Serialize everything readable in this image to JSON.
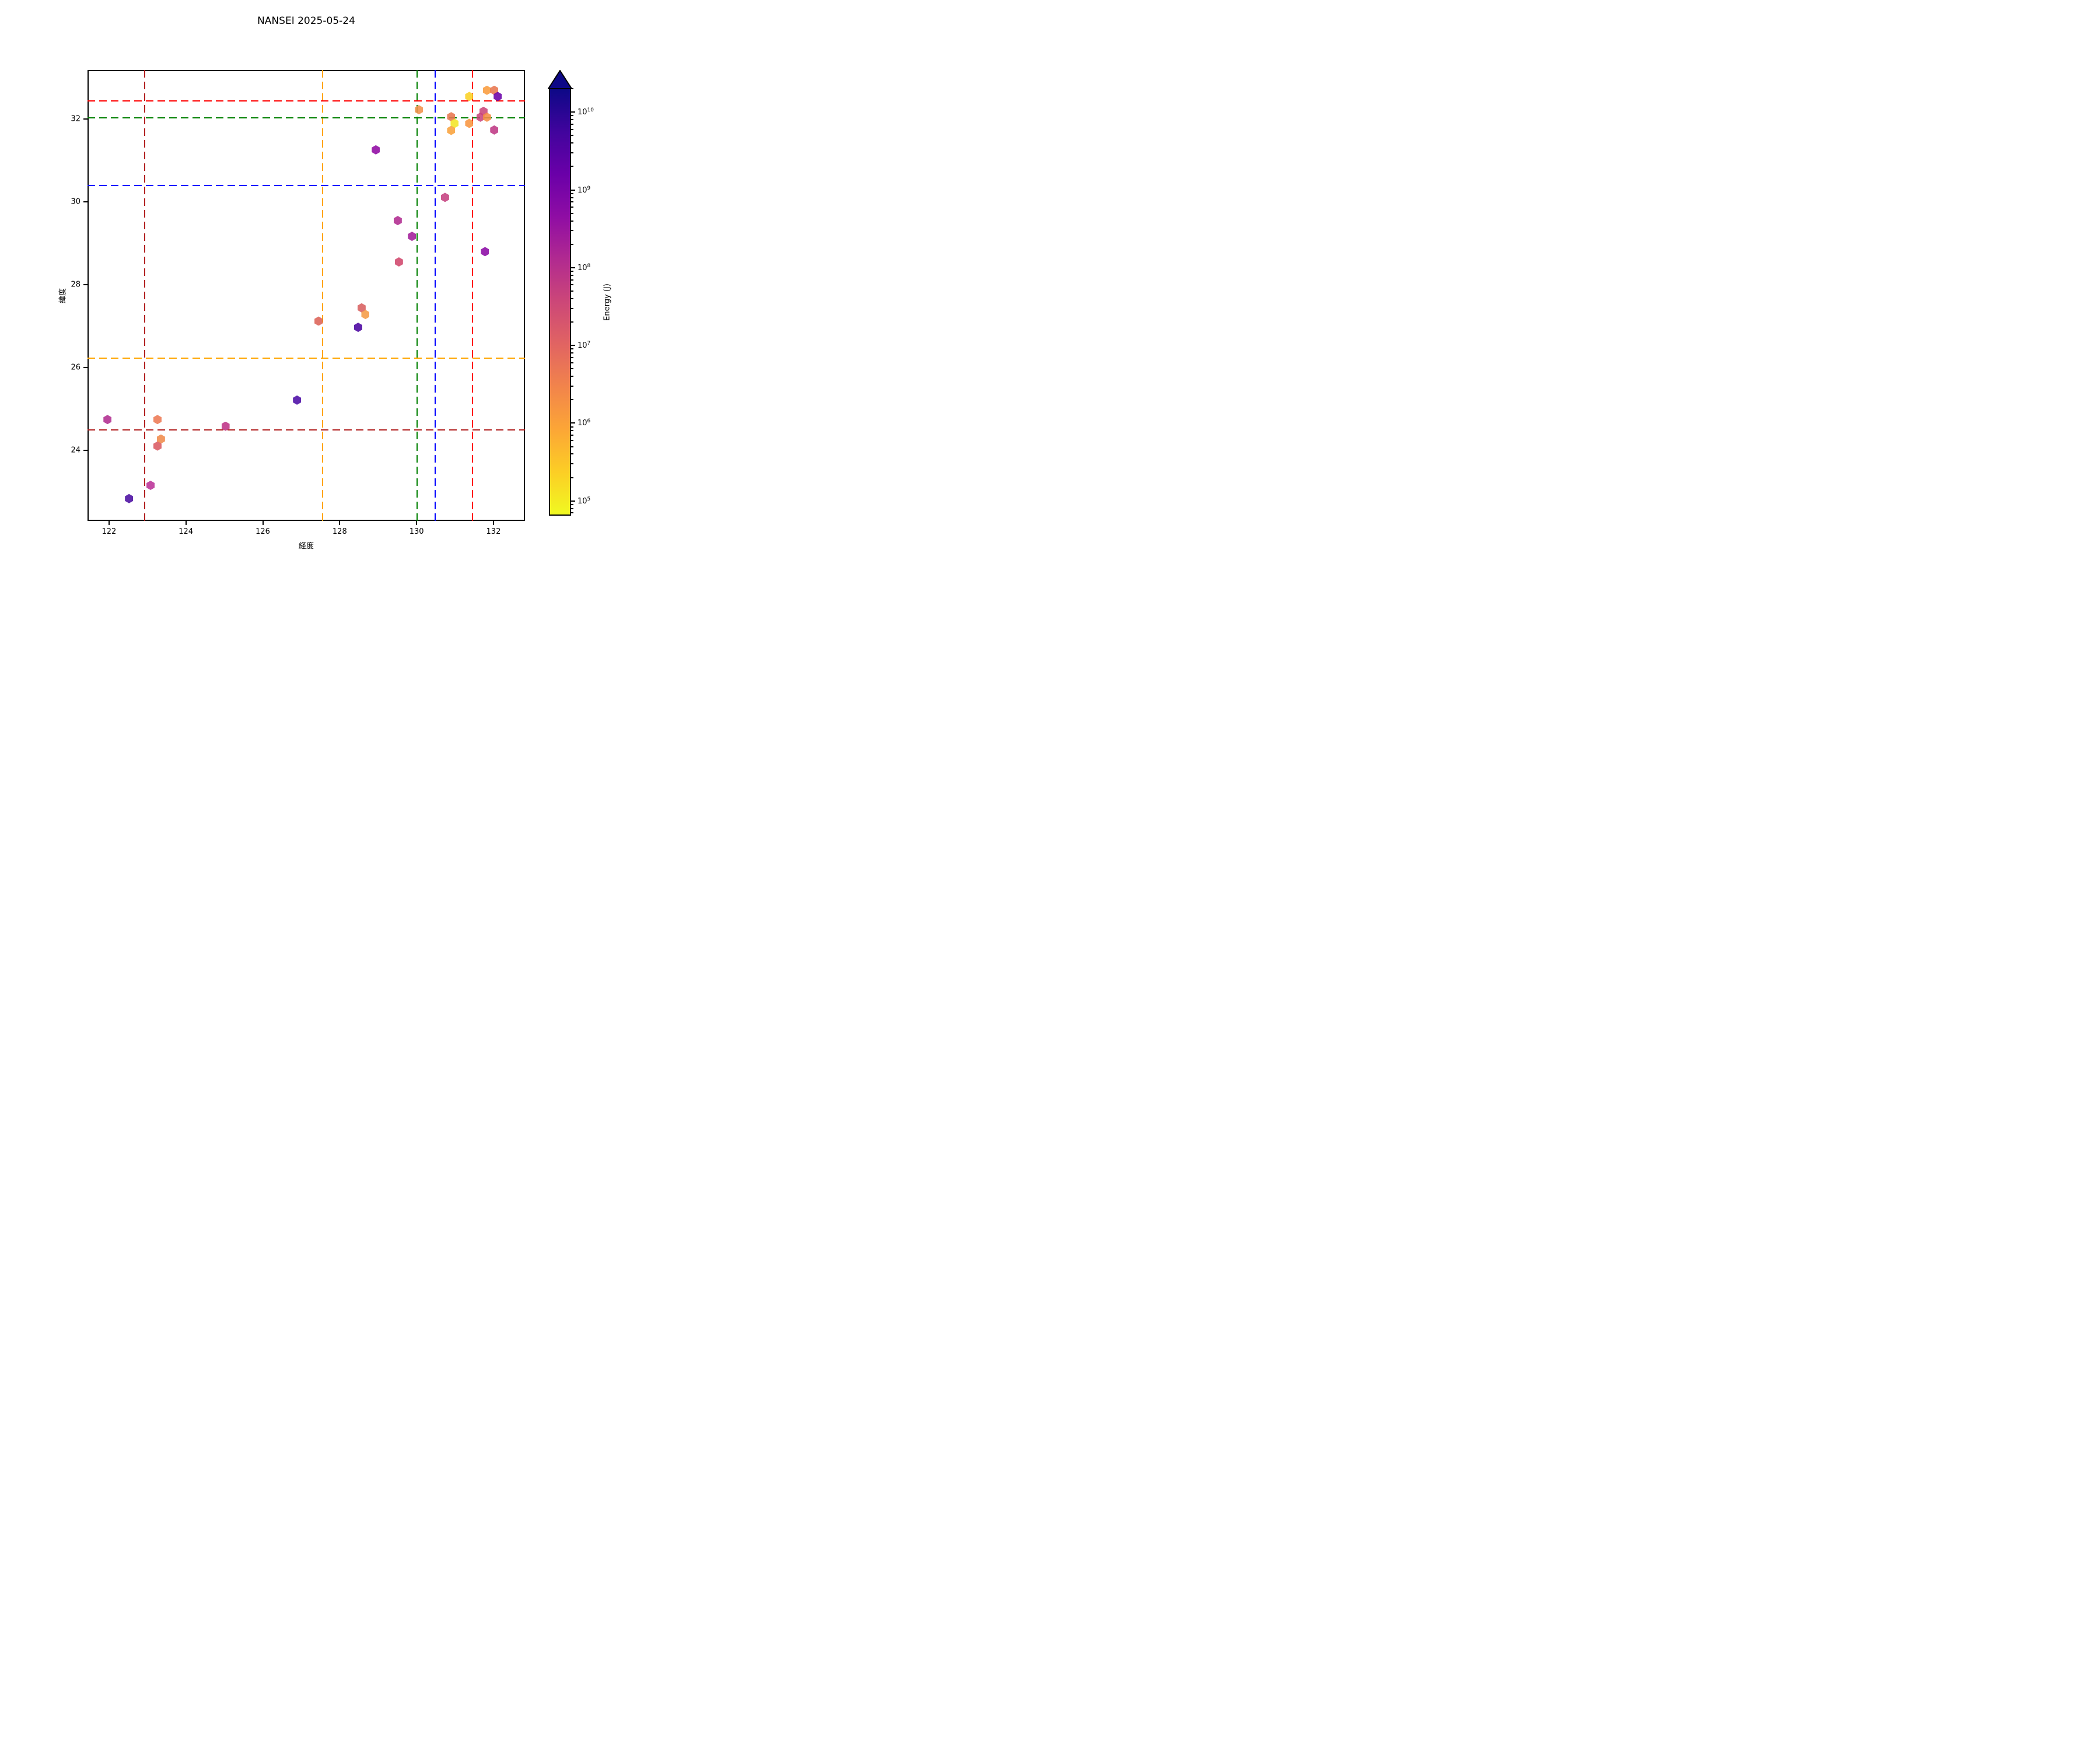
{
  "title": "NANSEI 2025-05-24",
  "chart_data": {
    "type": "scatter",
    "marker": "hexagon",
    "marker_alpha": 0.88,
    "title": "NANSEI 2025-05-24",
    "xlabel": "経度",
    "ylabel": "緯度",
    "xlim": [
      121.44,
      132.82
    ],
    "ylim": [
      22.29,
      33.19
    ],
    "xticks": [
      122,
      124,
      126,
      128,
      130,
      132
    ],
    "yticks": [
      24,
      26,
      28,
      30,
      32
    ],
    "grid": false,
    "legend": "none",
    "points": [
      {
        "lon": 131.83,
        "lat": 32.7,
        "color": "#f99c3e",
        "energy_J_est": 800000.0
      },
      {
        "lon": 132.02,
        "lat": 32.7,
        "color": "#e8764f",
        "energy_J_est": 10000000.0
      },
      {
        "lon": 132.11,
        "lat": 32.55,
        "color": "#6a00a8",
        "energy_J_est": 1600000000.0
      },
      {
        "lon": 131.37,
        "lat": 32.55,
        "color": "#fbd224",
        "energy_J_est": 200000.0
      },
      {
        "lon": 130.06,
        "lat": 32.23,
        "color": "#f2924c",
        "energy_J_est": 3000000.0
      },
      {
        "lon": 131.74,
        "lat": 32.19,
        "color": "#ca457a",
        "energy_J_est": 40000000.0
      },
      {
        "lon": 130.9,
        "lat": 32.06,
        "color": "#e8764f",
        "energy_J_est": 10000000.0
      },
      {
        "lon": 131.66,
        "lat": 32.05,
        "color": "#c8447c",
        "energy_J_est": 40000000.0
      },
      {
        "lon": 131.83,
        "lat": 32.05,
        "color": "#f58c46",
        "energy_J_est": 2000000.0
      },
      {
        "lon": 130.99,
        "lat": 31.9,
        "color": "#f3e524",
        "energy_J_est": 100000.0
      },
      {
        "lon": 131.37,
        "lat": 31.9,
        "color": "#f89540",
        "energy_J_est": 1000000.0
      },
      {
        "lon": 130.9,
        "lat": 31.73,
        "color": "#f9a23b",
        "energy_J_est": 700000.0
      },
      {
        "lon": 132.02,
        "lat": 31.74,
        "color": "#be3884",
        "energy_J_est": 100000000.0
      },
      {
        "lon": 128.94,
        "lat": 31.26,
        "color": "#8f09a3",
        "energy_J_est": 500000000.0
      },
      {
        "lon": 130.74,
        "lat": 30.11,
        "color": "#c5417f",
        "energy_J_est": 50000000.0
      },
      {
        "lon": 129.51,
        "lat": 29.55,
        "color": "#b12a90",
        "energy_J_est": 100000000.0
      },
      {
        "lon": 129.88,
        "lat": 29.17,
        "color": "#a21d9a",
        "energy_J_est": 200000000.0
      },
      {
        "lon": 131.78,
        "lat": 28.8,
        "color": "#8b0aa5",
        "energy_J_est": 600000000.0
      },
      {
        "lon": 129.54,
        "lat": 28.55,
        "color": "#d0476c",
        "energy_J_est": 20000000.0
      },
      {
        "lon": 128.57,
        "lat": 27.44,
        "color": "#d86060",
        "energy_J_est": 12000000.0
      },
      {
        "lon": 128.67,
        "lat": 27.28,
        "color": "#f59b44",
        "energy_J_est": 1500000.0
      },
      {
        "lon": 127.45,
        "lat": 27.12,
        "color": "#dc6257",
        "energy_J_est": 15000000.0
      },
      {
        "lon": 128.48,
        "lat": 26.97,
        "color": "#4a03a0",
        "energy_J_est": 5000000000.0
      },
      {
        "lon": 126.89,
        "lat": 25.21,
        "color": "#4c0ca6",
        "energy_J_est": 4000000000.0
      },
      {
        "lon": 121.96,
        "lat": 24.74,
        "color": "#b02c90",
        "energy_J_est": 100000000.0
      },
      {
        "lon": 123.26,
        "lat": 24.74,
        "color": "#ed7953",
        "energy_J_est": 8000000.0
      },
      {
        "lon": 125.03,
        "lat": 24.58,
        "color": "#be3386",
        "energy_J_est": 90000000.0
      },
      {
        "lon": 123.35,
        "lat": 24.27,
        "color": "#f08b4b",
        "energy_J_est": 2500000.0
      },
      {
        "lon": 123.26,
        "lat": 24.1,
        "color": "#d95a62",
        "energy_J_est": 14000000.0
      },
      {
        "lon": 123.08,
        "lat": 23.15,
        "color": "#bb3197",
        "energy_J_est": 80000000.0
      },
      {
        "lon": 122.52,
        "lat": 22.83,
        "color": "#4b0ea2",
        "energy_J_est": 4500000000.0
      }
    ],
    "reference_lines": {
      "style": "dashed",
      "vertical": [
        {
          "lon": 122.93,
          "color": "#b22222"
        },
        {
          "lon": 127.55,
          "color": "#ffa500"
        },
        {
          "lon": 130.02,
          "color": "#008000"
        },
        {
          "lon": 130.49,
          "color": "#0000ff"
        },
        {
          "lon": 131.45,
          "color": "#ff0000"
        }
      ],
      "horizontal": [
        {
          "lat": 32.44,
          "color": "#ff0000"
        },
        {
          "lat": 32.03,
          "color": "#008000"
        },
        {
          "lat": 30.4,
          "color": "#0000ff"
        },
        {
          "lat": 26.22,
          "color": "#ffa500"
        },
        {
          "lat": 24.49,
          "color": "#b22222"
        }
      ]
    },
    "colorbar": {
      "label": "Energy (J)",
      "scale": "log",
      "tick_base": "10",
      "tick_exponents": [
        10,
        9,
        8,
        7,
        6,
        5
      ],
      "vmax_exp": 10.31,
      "vmin_exp": 4.81,
      "extend": "max",
      "colormap": "plasma_r",
      "gradient_top_to_bottom": [
        "#0d0887",
        "#41049d",
        "#6a00a8",
        "#8f0da4",
        "#b12a90",
        "#cc4778",
        "#e16462",
        "#f2844b",
        "#fca636",
        "#fcce25",
        "#f0f921"
      ]
    }
  }
}
